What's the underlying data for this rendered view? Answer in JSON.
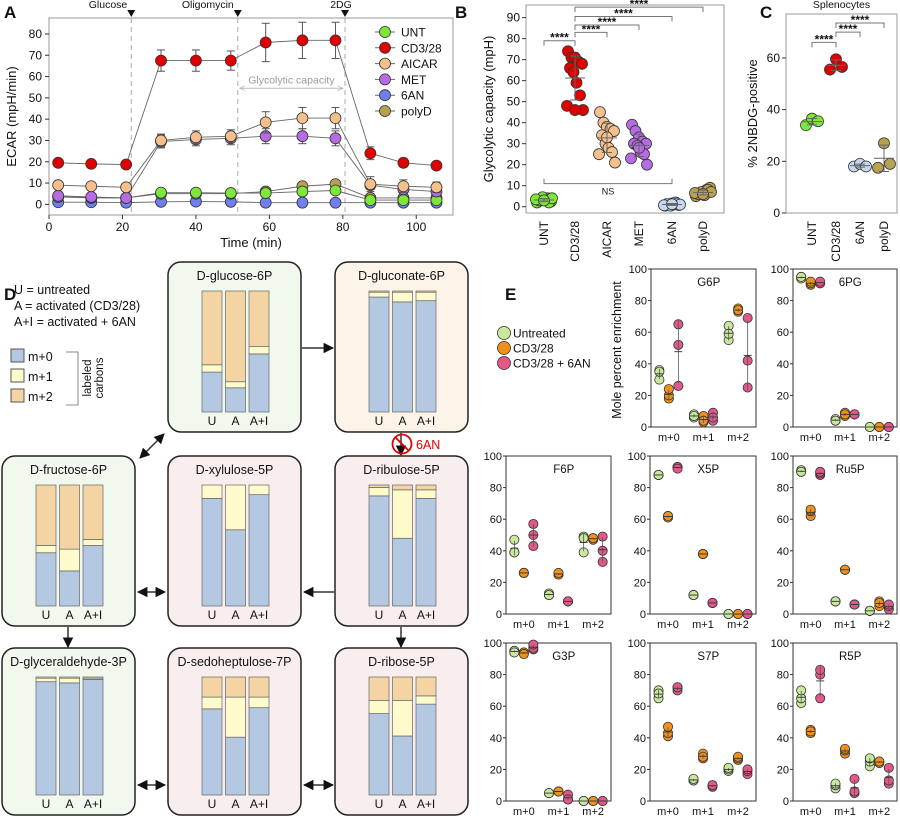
{
  "panel_labels": [
    "A",
    "B",
    "C",
    "D",
    "E"
  ],
  "chart_data": [
    {
      "type": "line",
      "xlabel": "Time (min)",
      "ylabel": "ECAR (mpH/min)",
      "xlim": [
        0,
        110
      ],
      "ylim": [
        -5,
        87.5
      ],
      "xticks": [
        0,
        20,
        40,
        60,
        80,
        100
      ],
      "yticks": [
        0,
        10,
        20,
        30,
        40,
        50,
        60,
        70,
        80
      ],
      "injections": [
        {
          "label": "Glucose",
          "time": 22.4
        },
        {
          "label": "Oligomycin",
          "time": 51.4
        },
        {
          "label": "2DG",
          "time": 80.6
        }
      ],
      "annotation": {
        "label": "Glycolytic capacity",
        "from": 51.4,
        "to": 80.6,
        "y": 54.5
      },
      "legend_position": "top-right",
      "x": [
        2.5,
        11.5,
        21,
        30.5,
        40,
        49.5,
        59,
        69,
        78,
        87.5,
        96.5,
        105.5
      ],
      "series": [
        {
          "name": "6AN",
          "color": "#6f7ff0",
          "values": [
            1,
            1,
            0.8,
            1.2,
            1.3,
            1.2,
            0.8,
            0.8,
            0.8,
            0.8,
            0.8,
            0.8
          ]
        },
        {
          "name": "polyD",
          "color": "#b9a24f",
          "values": [
            3.5,
            3,
            3,
            5,
            5,
            5,
            6,
            8.5,
            9.5,
            3,
            3,
            3
          ]
        },
        {
          "name": "UNT",
          "color": "#7ee83a",
          "values": [
            3.5,
            3.3,
            3,
            5.5,
            5.5,
            5.3,
            5.3,
            6,
            6.5,
            2,
            2,
            2
          ]
        },
        {
          "name": "MET",
          "color": "#b56be3",
          "values": [
            4,
            3.5,
            3,
            29.5,
            30.5,
            31,
            32,
            32,
            31,
            9,
            7,
            6
          ],
          "err": [
            1,
            1,
            1,
            3,
            3,
            3,
            3.5,
            3.5,
            3.5,
            2,
            2,
            2
          ]
        },
        {
          "name": "AICAR",
          "color": "#f6c08c",
          "values": [
            9,
            8.5,
            8,
            30,
            31.5,
            32,
            38.5,
            40.5,
            40.5,
            9.5,
            8.5,
            8
          ],
          "err": [
            1,
            1,
            1,
            3,
            3,
            3,
            5,
            5,
            5,
            3.5,
            3,
            2.5
          ]
        },
        {
          "name": "CD3/28",
          "color": "#e00000",
          "values": [
            19.5,
            19,
            18.7,
            67.5,
            67.5,
            67.5,
            76,
            77,
            77,
            24,
            19.5,
            18.2
          ],
          "err": [
            1,
            1,
            1,
            5,
            5,
            4.5,
            9,
            8.5,
            8.5,
            3,
            2,
            1.5
          ]
        }
      ],
      "legend_order": [
        "UNT",
        "CD3/28",
        "AICAR",
        "MET",
        "6AN",
        "polyD"
      ]
    },
    {
      "type": "scatter",
      "ylabel": "Glycolytic capacity (mpH)",
      "ylim": [
        -3,
        96
      ],
      "yticks": [
        0,
        10,
        20,
        30,
        40,
        50,
        60,
        70,
        80,
        90
      ],
      "categories": [
        "UNT",
        "CD3/28",
        "AICAR",
        "MET",
        "6AN",
        "polyD"
      ],
      "colors": [
        "#7ee83a",
        "#e00000",
        "#f6c08c",
        "#b56be3",
        "#c6d8f0",
        "#b9a24f"
      ],
      "values": [
        [
          2,
          3,
          3.5,
          4,
          2.5,
          3,
          4.5,
          3,
          2,
          3.5,
          4,
          3
        ],
        [
          74,
          71,
          71,
          69,
          68,
          66,
          64,
          59,
          53,
          48,
          46,
          46
        ],
        [
          45,
          40,
          38,
          37,
          36,
          34,
          30,
          28,
          26,
          25,
          21,
          33
        ],
        [
          39,
          36,
          33,
          31,
          30,
          30,
          29,
          26,
          25,
          23,
          20,
          28
        ],
        [
          0.5,
          1,
          1.5,
          2,
          0.8,
          1.2,
          0.5,
          1,
          1.5,
          0.7,
          1,
          1.2
        ],
        [
          5,
          6,
          7,
          8,
          9,
          6,
          7,
          5.5,
          8,
          6.5,
          7,
          6
        ]
      ],
      "comparisons": [
        {
          "from": "UNT",
          "to": "CD3/28",
          "label": "****",
          "y": 79
        },
        {
          "from": "CD3/28",
          "to": "AICAR",
          "label": "****",
          "y": 83
        },
        {
          "from": "CD3/28",
          "to": "MET",
          "label": "****",
          "y": 86.5
        },
        {
          "from": "CD3/28",
          "to": "6AN",
          "label": "****",
          "y": 90.5
        },
        {
          "from": "CD3/28",
          "to": "polyD",
          "label": "****",
          "y": 95
        },
        {
          "from": "UNT",
          "to": "6AN",
          "label": "NS",
          "y": 11,
          "below": true
        }
      ]
    },
    {
      "type": "scatter",
      "title": "Splenocytes",
      "ylabel": "% 2NBDG-positive",
      "ylim": [
        0,
        77
      ],
      "yticks": [
        0,
        20,
        40,
        60
      ],
      "categories": [
        "UNT",
        "CD3/28",
        "6AN",
        "polyD"
      ],
      "colors": [
        "#7ee83a",
        "#e00000",
        "#c6d8f0",
        "#b9a24f"
      ],
      "values": [
        [
          34,
          36.5,
          35.5
        ],
        [
          55.5,
          59.5,
          56.5
        ],
        [
          18,
          19,
          18
        ],
        [
          17.5,
          27,
          19
        ]
      ],
      "comparisons": [
        {
          "from": "UNT",
          "to": "CD3/28",
          "label": "****",
          "y": 66
        },
        {
          "from": "CD3/28",
          "to": "6AN",
          "label": "****",
          "y": 70
        },
        {
          "from": "CD3/28",
          "to": "polyD",
          "label": "****",
          "y": 73.5
        }
      ]
    },
    {
      "type": "bar",
      "stacked": true,
      "key_lines": [
        "U = untreated",
        "A = activated (CD3/28)",
        "A+I = activated + 6AN"
      ],
      "categories": [
        "U",
        "A",
        "A+I"
      ],
      "stack_labels": [
        "m+0",
        "m+1",
        "m+2"
      ],
      "stack_colors": [
        "#b5c8e1",
        "#fdfacb",
        "#f5d4a4"
      ],
      "stack_group_label": [
        "labeled",
        "carbons"
      ],
      "inhibitor": "6AN",
      "inhibitor_color": "#e00000",
      "metabolites": [
        {
          "name": "D-glucose-6P",
          "bg": "#f1f8ee",
          "bars": [
            [
              0.33,
              0.06,
              0.61
            ],
            [
              0.2,
              0.05,
              0.75
            ],
            [
              0.48,
              0.06,
              0.46
            ]
          ]
        },
        {
          "name": "D-gluconate-6P",
          "bg": "#fcf3e9",
          "bars": [
            [
              0.95,
              0.04,
              0.01
            ],
            [
              0.91,
              0.08,
              0.01
            ],
            [
              0.92,
              0.07,
              0.01
            ]
          ]
        },
        {
          "name": "D-fructose-6P",
          "bg": "#f1f8ee",
          "bars": [
            [
              0.44,
              0.06,
              0.5
            ],
            [
              0.29,
              0.18,
              0.53
            ],
            [
              0.5,
              0.05,
              0.45
            ]
          ]
        },
        {
          "name": "D-xylulose-5P",
          "bg": "#f9eeee",
          "bars": [
            [
              0.89,
              0.11,
              0
            ],
            [
              0.63,
              0.37,
              0
            ],
            [
              0.92,
              0.08,
              0
            ]
          ]
        },
        {
          "name": "D-ribulose-5P",
          "bg": "#f9eeee",
          "bars": [
            [
              0.91,
              0.07,
              0.02
            ],
            [
              0.56,
              0.4,
              0.04
            ],
            [
              0.89,
              0.07,
              0.04
            ]
          ]
        },
        {
          "name": "D-glyceraldehyde-3P",
          "bg": "#f1f8ee",
          "bars": [
            [
              0.96,
              0.03,
              0.01
            ],
            [
              0.95,
              0.04,
              0.01
            ],
            [
              0.98,
              0.01,
              0.01
            ]
          ]
        },
        {
          "name": "D-sedoheptulose-7P",
          "bg": "#f9eeee",
          "bars": [
            [
              0.73,
              0.1,
              0.17
            ],
            [
              0.49,
              0.34,
              0.17
            ],
            [
              0.74,
              0.09,
              0.17
            ]
          ]
        },
        {
          "name": "D-ribose-5P",
          "bg": "#f9eeee",
          "bars": [
            [
              0.69,
              0.11,
              0.2
            ],
            [
              0.5,
              0.3,
              0.2
            ],
            [
              0.77,
              0.07,
              0.16
            ]
          ]
        }
      ]
    },
    {
      "type": "scatter",
      "ylabel": "Mole percent enrichment",
      "ylim": [
        0,
        100
      ],
      "yticks": [
        0,
        20,
        40,
        60,
        80,
        100
      ],
      "categories": [
        "m+0",
        "m+1",
        "m+2"
      ],
      "groups": [
        {
          "name": "Untreated",
          "color": "#c9e89b"
        },
        {
          "name": "CD3/28",
          "color": "#f0911b"
        },
        {
          "name": "CD3/28 + 6AN",
          "color": "#e2588b"
        }
      ],
      "panels": [
        {
          "title": "G6P",
          "values": [
            [
              [
                30,
                36,
                35
              ],
              [
                6,
                8,
                7
              ],
              [
                55,
                64,
                59
              ]
            ],
            [
              [
                18,
                20,
                24
              ],
              [
                3,
                7,
                4
              ],
              [
                73,
                75,
                74
              ]
            ],
            [
              [
                26,
                52,
                65
              ],
              [
                4,
                9,
                6
              ],
              [
                25,
                42,
                69
              ]
            ]
          ]
        },
        {
          "title": "6PG",
          "values": [
            [
              [
                95,
                94,
                95
              ],
              [
                4,
                5,
                4
              ],
              [
                0,
                0,
                0
              ]
            ],
            [
              [
                90,
                91,
                92
              ],
              [
                7,
                9,
                8
              ],
              [
                0,
                0,
                0
              ]
            ],
            [
              [
                91,
                91,
                92
              ],
              [
                8,
                8,
                8
              ],
              [
                0,
                0,
                0
              ]
            ]
          ]
        },
        {
          "title": "F6P",
          "values": [
            [
              [
                39,
                47,
                39
              ],
              [
                12,
                13,
                12
              ],
              [
                39,
                49,
                48
              ]
            ],
            [
              [
                26,
                26,
                26
              ],
              [
                25,
                25,
                26
              ],
              [
                47,
                48,
                48
              ]
            ],
            [
              [
                43,
                50,
                57
              ],
              [
                8,
                8,
                8
              ],
              [
                33,
                40,
                49
              ]
            ]
          ]
        },
        {
          "title": "X5P",
          "values": [
            [
              [
                88,
                88,
                88
              ],
              [
                12,
                12,
                12
              ],
              [
                0,
                0,
                0
              ]
            ],
            [
              [
                62,
                61,
                62
              ],
              [
                38,
                38,
                38
              ],
              [
                0,
                0,
                0
              ]
            ],
            [
              [
                93,
                93,
                92
              ],
              [
                7,
                7,
                7
              ],
              [
                0,
                0,
                0
              ]
            ]
          ]
        },
        {
          "title": "Ru5P",
          "values": [
            [
              [
                90,
                91,
                90
              ],
              [
                8,
                8,
                8
              ],
              [
                2,
                2,
                2
              ]
            ],
            [
              [
                62,
                65,
                66
              ],
              [
                28,
                28,
                28
              ],
              [
                5,
                8,
                7
              ]
            ],
            [
              [
                88,
                89,
                90
              ],
              [
                6,
                6,
                6
              ],
              [
                3,
                5,
                6
              ]
            ]
          ]
        },
        {
          "title": "G3P",
          "values": [
            [
              [
                95,
                95,
                94
              ],
              [
                5,
                5,
                5
              ],
              [
                0,
                0,
                0
              ]
            ],
            [
              [
                94,
                94,
                93
              ],
              [
                6,
                6,
                6
              ],
              [
                0,
                0,
                0
              ]
            ],
            [
              [
                96,
                97,
                99
              ],
              [
                1,
                4,
                1
              ],
              [
                0,
                0,
                0
              ]
            ]
          ]
        },
        {
          "title": "S7P",
          "values": [
            [
              [
                65,
                70,
                68
              ],
              [
                13,
                13,
                14
              ],
              [
                19,
                20,
                21
              ]
            ],
            [
              [
                41,
                43,
                47
              ],
              [
                27,
                30,
                28
              ],
              [
                26,
                27,
                28
              ]
            ],
            [
              [
                70,
                72,
                72
              ],
              [
                9,
                10,
                10
              ],
              [
                17,
                19,
                20
              ]
            ]
          ]
        },
        {
          "title": "R5P",
          "values": [
            [
              [
                62,
                65,
                70
              ],
              [
                8,
                10,
                11
              ],
              [
                22,
                25,
                27
              ]
            ],
            [
              [
                43,
                45,
                44
              ],
              [
                30,
                32,
                33
              ],
              [
                24,
                25,
                25
              ]
            ],
            [
              [
                65,
                80,
                83
              ],
              [
                5,
                6,
                14
              ],
              [
                11,
                13,
                21
              ]
            ]
          ]
        }
      ]
    }
  ]
}
